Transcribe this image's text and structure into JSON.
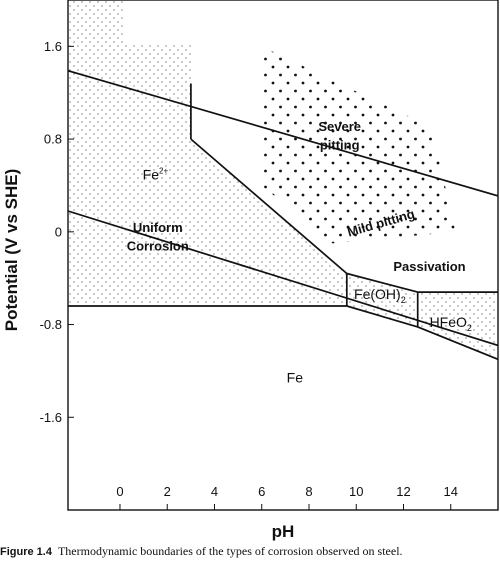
{
  "chart_data": {
    "type": "diagram",
    "xlabel": "pH",
    "ylabel": "Potential (V vs SHE)",
    "xlim": [
      -2.2,
      16
    ],
    "ylim": [
      -2.4,
      2.0
    ],
    "x_ticks": [
      {
        "value": 0,
        "label": "0"
      },
      {
        "value": 2,
        "label": "2"
      },
      {
        "value": 4,
        "label": "4"
      },
      {
        "value": 6,
        "label": "6"
      },
      {
        "value": 8,
        "label": "8"
      },
      {
        "value": 10,
        "label": "10"
      },
      {
        "value": 12,
        "label": "12"
      },
      {
        "value": 14,
        "label": "14"
      }
    ],
    "y_ticks": [
      {
        "value": 1.6,
        "label": "1.6"
      },
      {
        "value": 0.8,
        "label": "0.8"
      },
      {
        "value": 0,
        "label": "0"
      },
      {
        "value": -0.8,
        "label": "-0.8"
      },
      {
        "value": -1.6,
        "label": "-1.6"
      }
    ],
    "lines": [
      {
        "name": "oxygen-line",
        "points": [
          [
            -2.2,
            1.39
          ],
          [
            16,
            0.31
          ]
        ]
      },
      {
        "name": "hydrogen-line",
        "points": [
          [
            -2.2,
            0.18
          ],
          [
            16,
            -0.98
          ]
        ]
      },
      {
        "name": "fe2-fe-boundary",
        "points": [
          [
            -2.2,
            -0.64
          ],
          [
            9.6,
            -0.64
          ]
        ]
      },
      {
        "name": "fe2-vertical",
        "points": [
          [
            3.0,
            1.28
          ],
          [
            3.0,
            0.8
          ]
        ]
      },
      {
        "name": "fe2-feooh-boundary",
        "points": [
          [
            3.0,
            0.8
          ],
          [
            9.6,
            -0.36
          ]
        ]
      },
      {
        "name": "feoh2-upper",
        "points": [
          [
            9.6,
            -0.36
          ],
          [
            12.6,
            -0.52
          ]
        ]
      },
      {
        "name": "feoh2-left",
        "points": [
          [
            9.6,
            -0.36
          ],
          [
            9.6,
            -0.64
          ]
        ]
      },
      {
        "name": "feoh2-lower",
        "points": [
          [
            9.6,
            -0.64
          ],
          [
            12.6,
            -0.82
          ]
        ]
      },
      {
        "name": "feoh2-right",
        "points": [
          [
            12.6,
            -0.52
          ],
          [
            12.6,
            -0.82
          ]
        ]
      },
      {
        "name": "hfeo2-upper",
        "points": [
          [
            12.6,
            -0.52
          ],
          [
            16,
            -0.52
          ]
        ]
      },
      {
        "name": "hfeo2-lower",
        "points": [
          [
            12.6,
            -0.82
          ],
          [
            16,
            -1.1
          ]
        ]
      }
    ],
    "regions": [
      {
        "name": "fe2-region",
        "pattern": "sparse-dots",
        "polygon": [
          [
            -2.2,
            2.0
          ],
          [
            0.15,
            2.0
          ],
          [
            0.15,
            1.61
          ],
          [
            3.0,
            1.61
          ],
          [
            3.0,
            0.8
          ],
          [
            9.6,
            -0.36
          ],
          [
            9.6,
            -0.64
          ],
          [
            -2.2,
            -0.64
          ]
        ]
      },
      {
        "name": "feoh2-region",
        "pattern": "sparse-dots",
        "polygon": [
          [
            9.6,
            -0.36
          ],
          [
            12.6,
            -0.52
          ],
          [
            12.6,
            -0.82
          ],
          [
            9.6,
            -0.64
          ]
        ]
      },
      {
        "name": "hfeo2-region",
        "pattern": "sparse-dots",
        "polygon": [
          [
            12.6,
            -0.52
          ],
          [
            16,
            -0.52
          ],
          [
            16,
            -1.1
          ],
          [
            12.6,
            -0.82
          ]
        ]
      },
      {
        "name": "pitting-region",
        "pattern": "bold-dots",
        "polygon": [
          [
            6.0,
            1.6
          ],
          [
            13.2,
            0.9
          ],
          [
            14.2,
            0.0
          ],
          [
            9.0,
            -0.1
          ],
          [
            6.0,
            0.4
          ]
        ]
      }
    ],
    "labels": [
      {
        "name": "label-fe2",
        "text": "Fe",
        "sup": "2+",
        "x": 1.5,
        "y": 0.45
      },
      {
        "name": "label-severe",
        "text": "Severe",
        "x": 9.3,
        "y": 0.87,
        "bold": true
      },
      {
        "name": "label-pitting",
        "text": "pitting",
        "x": 9.3,
        "y": 0.71,
        "bold": true
      },
      {
        "name": "label-mild",
        "text": "Mild pitting",
        "x": 11.1,
        "y": 0.04,
        "bold": true,
        "rotate": -16
      },
      {
        "name": "label-uniform",
        "text": "Uniform",
        "x": 1.6,
        "y": 0.0,
        "bold": true
      },
      {
        "name": "label-corrosion",
        "text": "Corrosion",
        "x": 1.6,
        "y": -0.16,
        "bold": true
      },
      {
        "name": "label-passivation",
        "text": "Passivation",
        "x": 13.1,
        "y": -0.34,
        "bold": true
      },
      {
        "name": "label-feoh2",
        "text": "Fe(OH)",
        "sub": "2",
        "x": 11.0,
        "y": -0.58
      },
      {
        "name": "label-hfeo2",
        "text": "HFeO",
        "sub": "2",
        "x": 14.0,
        "y": -0.82
      },
      {
        "name": "label-fe",
        "text": "Fe",
        "x": 7.4,
        "y": -1.3
      }
    ]
  },
  "caption": {
    "figure_number": "Figure 1.4",
    "text": "Thermodynamic boundaries of the types of corrosion observed on steel."
  }
}
